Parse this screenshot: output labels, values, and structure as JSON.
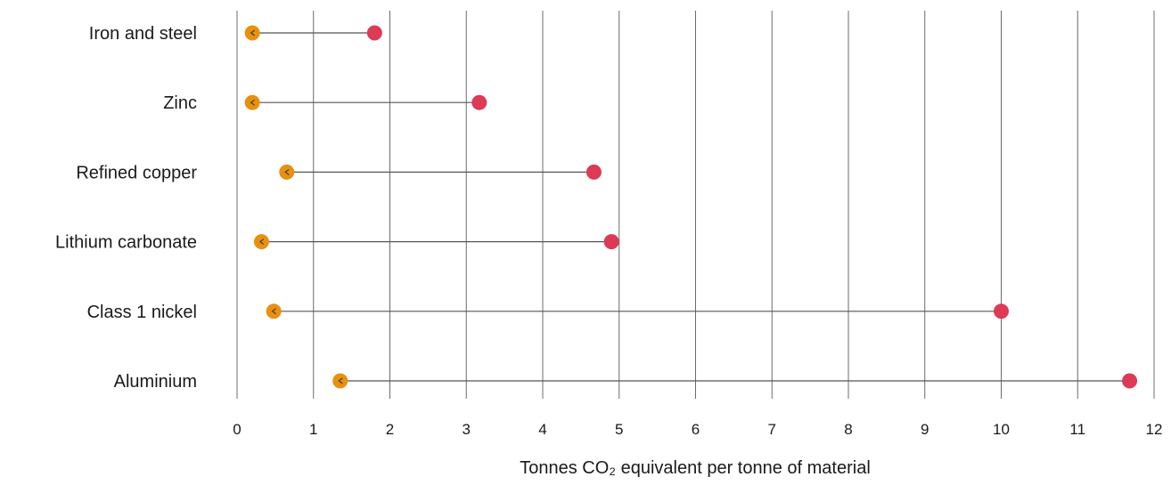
{
  "chart_data": {
    "type": "dumbbell",
    "xlabel": "Tonnes CO₂ equivalent per tonne of material",
    "xlim": [
      0,
      12
    ],
    "xticks": [
      0,
      1,
      2,
      3,
      4,
      5,
      6,
      7,
      8,
      9,
      10,
      11,
      12
    ],
    "grid": "vertical",
    "categories": [
      "Iron and steel",
      "Zinc",
      "Refined copper",
      "Lithium carbonate",
      "Class 1 nickel",
      "Aluminium"
    ],
    "series": [
      {
        "values": [
          0.2,
          0.2,
          0.65,
          0.32,
          0.48,
          1.35
        ],
        "color": "#e8900f"
      },
      {
        "values": [
          1.8,
          3.17,
          4.67,
          4.9,
          10.0,
          11.68
        ],
        "color": "#dc3a55"
      }
    ]
  }
}
